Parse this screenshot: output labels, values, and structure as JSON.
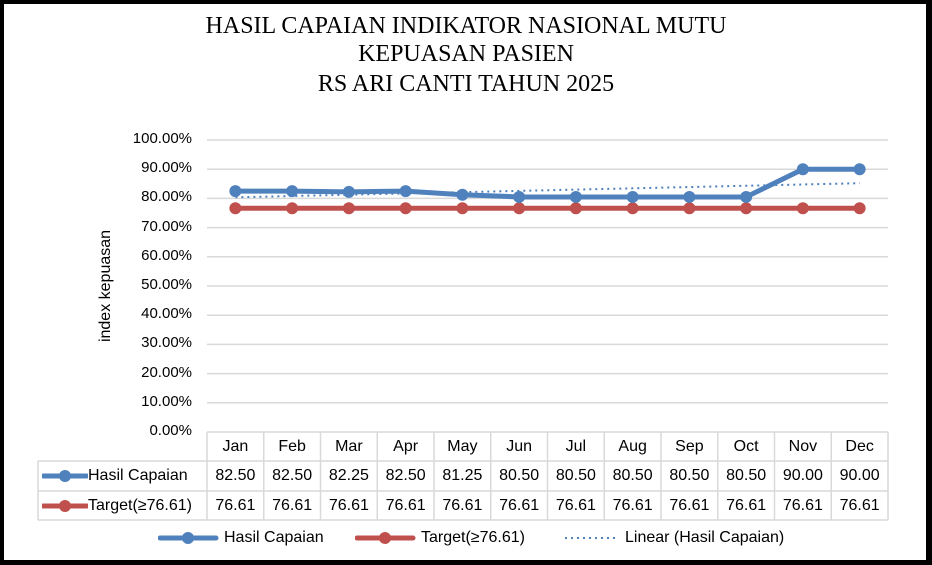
{
  "chart_data": {
    "type": "line",
    "title": "HASIL CAPAIAN INDIKATOR NASIONAL MUTU KEPUASAN PASIEN RS ARI CANTI TAHUN 2025",
    "title_lines": [
      "HASIL CAPAIAN INDIKATOR NASIONAL MUTU",
      "KEPUASAN PASIEN",
      "RS ARI CANTI TAHUN 2025"
    ],
    "xlabel": "",
    "ylabel": "index kepuasan",
    "ylim": [
      0,
      100
    ],
    "yticks": [
      "100.00%",
      "90.00%",
      "80.00%",
      "70.00%",
      "60.00%",
      "50.00%",
      "40.00%",
      "30.00%",
      "20.00%",
      "10.00%",
      "0.00%"
    ],
    "grid": true,
    "legend_position": "bottom",
    "data_table": true,
    "categories": [
      "Jan",
      "Feb",
      "Mar",
      "Apr",
      "May",
      "Jun",
      "Jul",
      "Aug",
      "Sep",
      "Oct",
      "Nov",
      "Dec"
    ],
    "series": [
      {
        "name": "Hasil Capaian",
        "color": "#4f81bd",
        "marker": "circle",
        "values": [
          82.5,
          82.5,
          82.25,
          82.5,
          81.25,
          80.5,
          80.5,
          80.5,
          80.5,
          80.5,
          90.0,
          90.0
        ],
        "labels": [
          "82.50",
          "82.50",
          "82.25",
          "82.50",
          "81.25",
          "80.50",
          "80.50",
          "80.50",
          "80.50",
          "80.50",
          "90.00",
          "90.00"
        ]
      },
      {
        "name": "Target(≥76.61)",
        "color": "#c0504d",
        "marker": "circle",
        "values": [
          76.61,
          76.61,
          76.61,
          76.61,
          76.61,
          76.61,
          76.61,
          76.61,
          76.61,
          76.61,
          76.61,
          76.61
        ],
        "labels": [
          "76.61",
          "76.61",
          "76.61",
          "76.61",
          "76.61",
          "76.61",
          "76.61",
          "76.61",
          "76.61",
          "76.61",
          "76.61",
          "76.61"
        ]
      }
    ],
    "trendline": {
      "name": "Linear (Hasil Capaian)",
      "type": "linear",
      "of": "Hasil Capaian",
      "style": "dotted",
      "color": "#4f81bd"
    }
  },
  "legend": [
    "Hasil Capaian",
    "Target(≥76.61)",
    "Linear (Hasil Capaian)"
  ]
}
